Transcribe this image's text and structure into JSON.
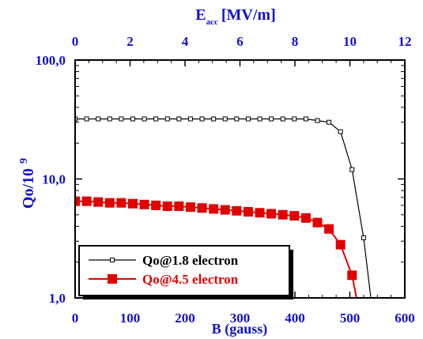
{
  "chart_data": {
    "type": "line",
    "title": "",
    "xlabel": "B (gauss)",
    "ylabel_main": "Qo/10",
    "ylabel_exp": "9",
    "x2label_main": "E",
    "x2label_sub": "acc",
    "x2label_unit": "[MV/m]",
    "xlim": [
      0,
      600
    ],
    "ylim": [
      1,
      100
    ],
    "yscale": "log",
    "x2lim": [
      0,
      12
    ],
    "x_ticks": [
      "0",
      "100",
      "200",
      "300",
      "400",
      "500",
      "600"
    ],
    "x2_ticks": [
      "0",
      "2",
      "4",
      "6",
      "8",
      "10",
      "12"
    ],
    "y_ticks": [
      {
        "value": 100,
        "label": "100,0"
      },
      {
        "value": 10,
        "label": "10,0"
      },
      {
        "value": 1,
        "label": "1,0"
      }
    ],
    "grid": false,
    "legend_position": "bottom-left",
    "series": [
      {
        "name": "Qo@1.8 electron",
        "color": "#000000",
        "marker": "open-square",
        "x": [
          0,
          21,
          42,
          63,
          84,
          105,
          126,
          147,
          168,
          189,
          210,
          231,
          252,
          273,
          294,
          315,
          336,
          357,
          378,
          399,
          420,
          441,
          462,
          483,
          504,
          525,
          546
        ],
        "y": [
          32,
          32,
          32,
          32,
          32,
          32,
          32,
          32,
          32,
          32,
          32,
          32,
          32,
          32,
          32,
          32,
          32,
          32,
          32,
          32,
          32,
          31,
          30,
          25,
          12,
          3.2,
          0.5
        ]
      },
      {
        "name": "Qo@4.5 electron",
        "color": "#e00000",
        "marker": "filled-square",
        "x": [
          0,
          21,
          42,
          63,
          84,
          105,
          126,
          147,
          168,
          189,
          210,
          231,
          252,
          273,
          294,
          315,
          336,
          357,
          378,
          399,
          420,
          441,
          462,
          483,
          504,
          525
        ],
        "y": [
          6.5,
          6.5,
          6.4,
          6.3,
          6.3,
          6.2,
          6.1,
          6.0,
          5.9,
          5.9,
          5.8,
          5.7,
          5.6,
          5.5,
          5.4,
          5.3,
          5.2,
          5.1,
          5.0,
          4.9,
          4.7,
          4.3,
          3.8,
          2.8,
          1.55,
          0.5
        ]
      }
    ]
  }
}
